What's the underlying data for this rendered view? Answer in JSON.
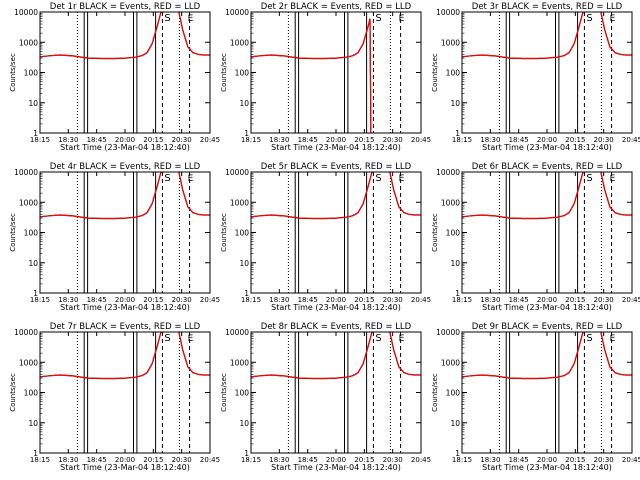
{
  "figure": {
    "panel_title_template": "Det {det} BLACK = Events, RED = LLD",
    "xlabel": "Start Time (23-Mar-04 18:12:40)",
    "ylabel": "Counts/sec",
    "x_ticks": [
      "18:15",
      "18:30",
      "18:45",
      "20:00",
      "20:15",
      "20:30",
      "20:45"
    ],
    "y_ticks": [
      "1",
      "10",
      "100",
      "1000",
      "10000"
    ],
    "marker_start": "S",
    "marker_end": "E",
    "colors": {
      "events": "#000000",
      "lld": "#ff0000",
      "axes": "#000000"
    }
  },
  "chart_data": [
    {
      "type": "line",
      "title": "Det 1r BLACK = Events, RED = LLD",
      "det": "1r",
      "xlabel": "Start Time (23-Mar-04 18:12:40)",
      "ylabel": "Counts/sec",
      "y_scale": "log",
      "ylim": [
        1,
        10000
      ],
      "x": [
        0,
        0.06,
        0.12,
        0.2,
        0.28,
        0.36,
        0.44,
        0.5,
        0.56,
        0.6,
        0.63,
        0.66,
        0.69,
        0.72,
        0.75,
        0.78,
        0.81,
        0.84,
        0.87,
        0.9,
        0.93,
        0.96,
        1
      ],
      "events": [
        330,
        360,
        380,
        350,
        300,
        290,
        290,
        300,
        320,
        360,
        450,
        900,
        3500,
        15000,
        15000,
        15000,
        15000,
        2500,
        700,
        450,
        400,
        380,
        380
      ],
      "lld": [
        330,
        360,
        380,
        350,
        300,
        290,
        290,
        300,
        320,
        360,
        450,
        900,
        3500,
        15000,
        15000,
        15000,
        15000,
        2500,
        700,
        450,
        400,
        380,
        380
      ],
      "solid_vlines": [
        0.26,
        0.28,
        0.55,
        0.57,
        0.68
      ],
      "dotted_vlines": [
        0.22,
        0.82
      ],
      "dashed_vlines": [
        0.72,
        0.88
      ]
    },
    {
      "type": "line",
      "title": "Det 2r BLACK = Events, RED = LLD",
      "det": "2r",
      "xlabel": "Start Time (23-Mar-04 18:12:40)",
      "ylabel": "Counts/sec",
      "y_scale": "log",
      "ylim": [
        1,
        10000
      ],
      "x": [
        0,
        0.06,
        0.12,
        0.2,
        0.28,
        0.36,
        0.44,
        0.5,
        0.56,
        0.6,
        0.63,
        0.66,
        0.69,
        0.7,
        0.705
      ],
      "events": [
        330,
        360,
        380,
        350,
        300,
        290,
        290,
        300,
        320,
        360,
        450,
        900,
        3500,
        6000,
        1
      ],
      "lld": [
        330,
        360,
        380,
        350,
        300,
        290,
        290,
        300,
        320,
        360,
        450,
        900,
        3500,
        6000,
        1
      ],
      "solid_vlines": [
        0.26,
        0.28,
        0.55,
        0.57,
        0.68
      ],
      "dotted_vlines": [
        0.22,
        0.82
      ],
      "dashed_vlines": [
        0.72,
        0.88
      ]
    },
    {
      "type": "line",
      "title": "Det 3r BLACK = Events, RED = LLD",
      "det": "3r",
      "xlabel": "Start Time (23-Mar-04 18:12:40)",
      "ylabel": "Counts/sec",
      "y_scale": "log",
      "ylim": [
        1,
        10000
      ],
      "x": [
        0,
        0.06,
        0.12,
        0.2,
        0.28,
        0.36,
        0.44,
        0.5,
        0.56,
        0.6,
        0.63,
        0.66,
        0.69,
        0.72,
        0.75,
        0.78,
        0.81,
        0.84,
        0.87,
        0.9,
        0.93,
        0.96,
        1
      ],
      "events": [
        330,
        360,
        380,
        350,
        300,
        290,
        290,
        300,
        320,
        360,
        450,
        900,
        3500,
        15000,
        15000,
        15000,
        15000,
        2500,
        700,
        450,
        400,
        380,
        380
      ],
      "lld": [
        330,
        360,
        380,
        350,
        300,
        290,
        290,
        300,
        320,
        360,
        450,
        900,
        3500,
        15000,
        15000,
        15000,
        15000,
        2500,
        700,
        450,
        400,
        380,
        380
      ],
      "solid_vlines": [
        0.26,
        0.28,
        0.55,
        0.57,
        0.68
      ],
      "dotted_vlines": [
        0.22,
        0.82
      ],
      "dashed_vlines": [
        0.72,
        0.88
      ]
    },
    {
      "type": "line",
      "title": "Det 4r BLACK = Events, RED = LLD",
      "det": "4r",
      "xlabel": "Start Time (23-Mar-04 18:12:40)",
      "ylabel": "Counts/sec",
      "y_scale": "log",
      "ylim": [
        1,
        10000
      ],
      "x": [
        0,
        0.06,
        0.12,
        0.2,
        0.28,
        0.36,
        0.44,
        0.5,
        0.56,
        0.6,
        0.63,
        0.66,
        0.69,
        0.72,
        0.75,
        0.78,
        0.81,
        0.84,
        0.87,
        0.9,
        0.93,
        0.96,
        1
      ],
      "events": [
        330,
        360,
        380,
        350,
        300,
        290,
        290,
        300,
        320,
        360,
        450,
        900,
        3500,
        15000,
        15000,
        15000,
        15000,
        2500,
        700,
        450,
        400,
        380,
        380
      ],
      "lld": [
        330,
        360,
        380,
        350,
        300,
        290,
        290,
        300,
        320,
        360,
        450,
        900,
        3500,
        15000,
        15000,
        15000,
        15000,
        2500,
        700,
        450,
        400,
        380,
        380
      ],
      "solid_vlines": [
        0.26,
        0.28,
        0.55,
        0.57,
        0.68
      ],
      "dotted_vlines": [
        0.22,
        0.82
      ],
      "dashed_vlines": [
        0.72,
        0.88
      ]
    },
    {
      "type": "line",
      "title": "Det 5r BLACK = Events, RED = LLD",
      "det": "5r",
      "xlabel": "Start Time (23-Mar-04 18:12:40)",
      "ylabel": "Counts/sec",
      "y_scale": "log",
      "ylim": [
        1,
        10000
      ],
      "x": [
        0,
        0.06,
        0.12,
        0.2,
        0.28,
        0.36,
        0.44,
        0.5,
        0.56,
        0.6,
        0.63,
        0.66,
        0.69,
        0.72,
        0.75,
        0.78,
        0.81,
        0.84,
        0.87,
        0.9,
        0.93,
        0.96,
        1
      ],
      "events": [
        330,
        360,
        380,
        350,
        300,
        290,
        290,
        300,
        320,
        360,
        450,
        900,
        3500,
        15000,
        15000,
        15000,
        15000,
        2500,
        700,
        450,
        400,
        380,
        380
      ],
      "lld": [
        330,
        360,
        380,
        350,
        300,
        290,
        290,
        300,
        320,
        360,
        450,
        900,
        3500,
        15000,
        15000,
        15000,
        15000,
        2500,
        700,
        450,
        400,
        380,
        380
      ],
      "solid_vlines": [
        0.26,
        0.28,
        0.55,
        0.57,
        0.68
      ],
      "dotted_vlines": [
        0.22,
        0.82
      ],
      "dashed_vlines": [
        0.72,
        0.88
      ]
    },
    {
      "type": "line",
      "title": "Det 6r BLACK = Events, RED = LLD",
      "det": "6r",
      "xlabel": "Start Time (23-Mar-04 18:12:40)",
      "ylabel": "Counts/sec",
      "y_scale": "log",
      "ylim": [
        1,
        10000
      ],
      "x": [
        0,
        0.06,
        0.12,
        0.2,
        0.28,
        0.36,
        0.44,
        0.5,
        0.56,
        0.6,
        0.63,
        0.66,
        0.69,
        0.72,
        0.75,
        0.78,
        0.81,
        0.84,
        0.87,
        0.9,
        0.93,
        0.96,
        1
      ],
      "events": [
        330,
        360,
        380,
        350,
        300,
        290,
        290,
        300,
        320,
        360,
        450,
        900,
        3500,
        15000,
        15000,
        15000,
        15000,
        2500,
        700,
        450,
        400,
        380,
        380
      ],
      "lld": [
        330,
        360,
        380,
        350,
        300,
        290,
        290,
        300,
        320,
        360,
        450,
        900,
        3500,
        15000,
        15000,
        15000,
        15000,
        2500,
        700,
        450,
        400,
        380,
        380
      ],
      "solid_vlines": [
        0.26,
        0.28,
        0.55,
        0.57,
        0.68
      ],
      "dotted_vlines": [
        0.22,
        0.82
      ],
      "dashed_vlines": [
        0.72,
        0.88
      ]
    },
    {
      "type": "line",
      "title": "Det 7r BLACK = Events, RED = LLD",
      "det": "7r",
      "xlabel": "Start Time (23-Mar-04 18:12:40)",
      "ylabel": "Counts/sec",
      "y_scale": "log",
      "ylim": [
        1,
        10000
      ],
      "x": [
        0,
        0.06,
        0.12,
        0.2,
        0.28,
        0.36,
        0.44,
        0.5,
        0.56,
        0.6,
        0.63,
        0.66,
        0.69,
        0.72,
        0.75,
        0.78,
        0.81,
        0.84,
        0.87,
        0.9,
        0.93,
        0.96,
        1
      ],
      "events": [
        330,
        360,
        380,
        350,
        300,
        290,
        290,
        300,
        320,
        360,
        450,
        900,
        3500,
        15000,
        15000,
        15000,
        15000,
        2500,
        700,
        450,
        400,
        380,
        380
      ],
      "lld": [
        330,
        360,
        380,
        350,
        300,
        290,
        290,
        300,
        320,
        360,
        450,
        900,
        3500,
        15000,
        15000,
        15000,
        15000,
        2500,
        700,
        450,
        400,
        380,
        380
      ],
      "solid_vlines": [
        0.26,
        0.28,
        0.55,
        0.57,
        0.68
      ],
      "dotted_vlines": [
        0.22,
        0.82
      ],
      "dashed_vlines": [
        0.72,
        0.88
      ]
    },
    {
      "type": "line",
      "title": "Det 8r BLACK = Events, RED = LLD",
      "det": "8r",
      "xlabel": "Start Time (23-Mar-04 18:12:40)",
      "ylabel": "Counts/sec",
      "y_scale": "log",
      "ylim": [
        1,
        10000
      ],
      "x": [
        0,
        0.06,
        0.12,
        0.2,
        0.28,
        0.36,
        0.44,
        0.5,
        0.56,
        0.6,
        0.63,
        0.66,
        0.69,
        0.72,
        0.75,
        0.78,
        0.81,
        0.84,
        0.87,
        0.9,
        0.93,
        0.96,
        1
      ],
      "events": [
        330,
        360,
        380,
        350,
        300,
        290,
        290,
        300,
        320,
        360,
        450,
        900,
        3500,
        15000,
        15000,
        15000,
        15000,
        2500,
        700,
        450,
        400,
        380,
        380
      ],
      "lld": [
        330,
        360,
        380,
        350,
        300,
        290,
        290,
        300,
        320,
        360,
        450,
        900,
        3500,
        15000,
        15000,
        15000,
        15000,
        2500,
        700,
        450,
        400,
        380,
        380
      ],
      "solid_vlines": [
        0.26,
        0.28,
        0.55,
        0.57,
        0.68
      ],
      "dotted_vlines": [
        0.22,
        0.82
      ],
      "dashed_vlines": [
        0.72,
        0.88
      ]
    },
    {
      "type": "line",
      "title": "Det 9r BLACK = Events, RED = LLD",
      "det": "9r",
      "xlabel": "Start Time (23-Mar-04 18:12:40)",
      "ylabel": "Counts/sec",
      "y_scale": "log",
      "ylim": [
        1,
        10000
      ],
      "x": [
        0,
        0.06,
        0.12,
        0.2,
        0.28,
        0.36,
        0.44,
        0.5,
        0.56,
        0.6,
        0.63,
        0.66,
        0.69,
        0.72,
        0.75,
        0.78,
        0.81,
        0.84,
        0.87,
        0.9,
        0.93,
        0.96,
        1
      ],
      "events": [
        330,
        360,
        380,
        350,
        300,
        290,
        290,
        300,
        320,
        360,
        450,
        900,
        3500,
        15000,
        15000,
        15000,
        15000,
        2500,
        700,
        450,
        400,
        380,
        380
      ],
      "lld": [
        330,
        360,
        380,
        350,
        300,
        290,
        290,
        300,
        320,
        360,
        450,
        900,
        3500,
        15000,
        15000,
        15000,
        15000,
        2500,
        700,
        450,
        400,
        380,
        380
      ],
      "solid_vlines": [
        0.26,
        0.28,
        0.55,
        0.57,
        0.68
      ],
      "dotted_vlines": [
        0.22,
        0.82
      ],
      "dashed_vlines": [
        0.72,
        0.88
      ]
    }
  ]
}
